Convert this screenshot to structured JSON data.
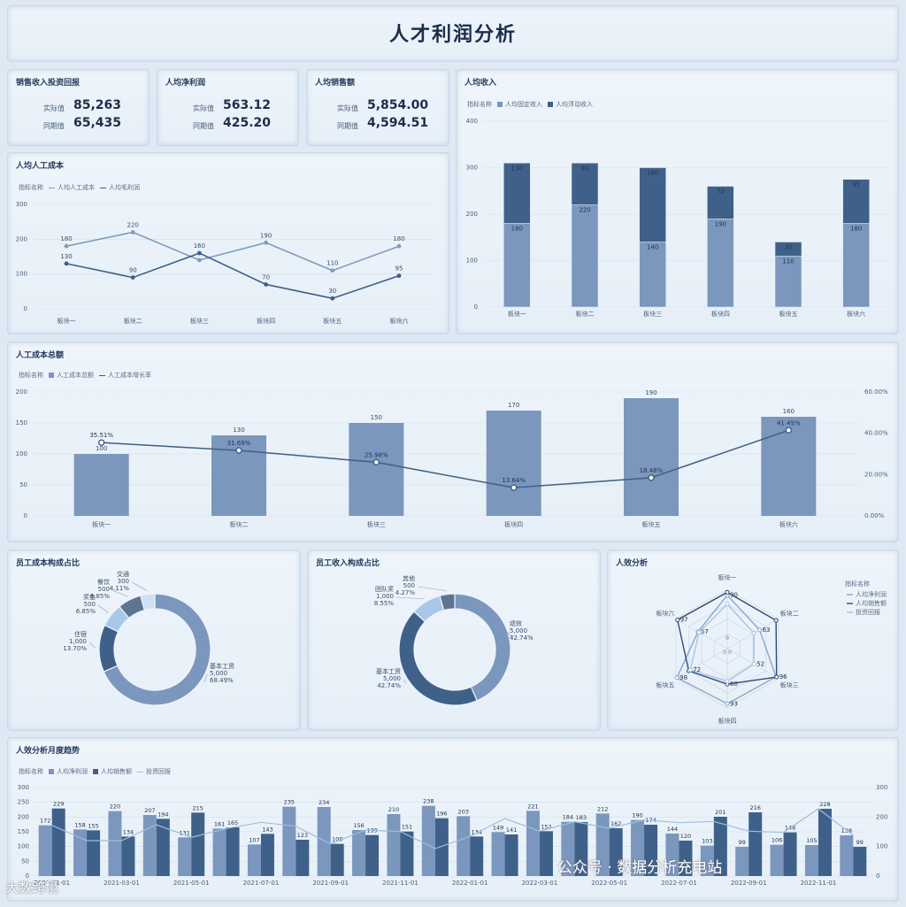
{
  "title": "人才利润分析",
  "legend_label": "指标名称",
  "kpis": [
    {
      "title": "销售收入投资回报",
      "actual_label": "实际值",
      "actual": "85,263",
      "compare_label": "同期值",
      "compare": "65,435"
    },
    {
      "title": "人均净利润",
      "actual_label": "实际值",
      "actual": "563.12",
      "compare_label": "同期值",
      "compare": "425.20"
    },
    {
      "title": "人均销售额",
      "actual_label": "实际值",
      "actual": "5,854.00",
      "compare_label": "同期值",
      "compare": "4,594.51"
    }
  ],
  "chart_data": [
    {
      "id": "labor_cost_per_capita",
      "type": "line",
      "title": "人均人工成本",
      "categories": [
        "板块一",
        "板块二",
        "板块三",
        "板块四",
        "板块五",
        "板块六"
      ],
      "series": [
        {
          "name": "人均人工成本",
          "values": [
            180,
            220,
            140,
            190,
            110,
            180
          ],
          "color": "#7f9cc0",
          "data_labels": [
            "180",
            "220",
            "",
            "190",
            "110",
            "180"
          ]
        },
        {
          "name": "人均毛利润",
          "values": [
            130,
            90,
            160,
            70,
            30,
            95
          ],
          "color": "#3e5f86",
          "data_labels": [
            "130",
            "90",
            "160",
            "70",
            "30",
            "95"
          ]
        }
      ],
      "ylim": [
        0,
        300
      ],
      "yticks": [
        0,
        100,
        200,
        300
      ]
    },
    {
      "id": "income_per_capita",
      "type": "bar",
      "stacked": true,
      "title": "人均收入",
      "categories": [
        "板块一",
        "板块二",
        "板块三",
        "板块四",
        "板块五",
        "板块六"
      ],
      "series": [
        {
          "name": "人均固定收入",
          "values": [
            180,
            220,
            140,
            190,
            110,
            180
          ],
          "color": "#7b97bd"
        },
        {
          "name": "人均浮动收入",
          "values": [
            130,
            90,
            160,
            70,
            30,
            95
          ],
          "color": "#3f6189"
        }
      ],
      "ylim": [
        0,
        400
      ],
      "yticks": [
        0,
        100,
        200,
        300,
        400
      ]
    },
    {
      "id": "labor_cost_total",
      "type": "bar",
      "title": "人工成本总额",
      "categories": [
        "板块一",
        "板块二",
        "板块三",
        "板块四",
        "板块五",
        "板块六"
      ],
      "series": [
        {
          "name": "人工成本总额",
          "values": [
            100,
            130,
            150,
            170,
            190,
            160
          ],
          "color": "#7b97bd"
        },
        {
          "name": "人工成本增长率",
          "values": [
            35.51,
            31.69,
            25.98,
            13.64,
            18.48,
            41.45
          ],
          "labels": [
            "35.51%",
            "31.69%",
            "25.98%",
            "13.64%",
            "18.48%",
            "41.45%"
          ],
          "axis": "right",
          "color": "#3e5f86"
        }
      ],
      "ylim": [
        0,
        200
      ],
      "yticks": [
        0,
        50,
        100,
        150,
        200
      ],
      "y2lim": [
        0,
        60
      ],
      "y2ticks": [
        "0.00%",
        "20.00%",
        "40.00%",
        "60.00%"
      ]
    },
    {
      "id": "employee_cost_composition",
      "type": "pie",
      "donut": true,
      "title": "员工成本构成占比",
      "slices": [
        {
          "name": "基本工资",
          "value": 5000,
          "value_label": "5,000",
          "pct": "68.49%",
          "color": "#7b97bd"
        },
        {
          "name": "住宿",
          "value": 1000,
          "value_label": "1,000",
          "pct": "13.70%",
          "color": "#3f6189"
        },
        {
          "name": "奖金",
          "value": 500,
          "value_label": "500",
          "pct": "6.85%",
          "color": "#a9c8e8"
        },
        {
          "name": "餐饮",
          "value": 500,
          "value_label": "500",
          "pct": "6.85%",
          "color": "#5e7592"
        },
        {
          "name": "交通",
          "value": 300,
          "value_label": "300",
          "pct": "4.11%",
          "color": "#cfe0f1"
        }
      ]
    },
    {
      "id": "employee_income_composition",
      "type": "pie",
      "donut": true,
      "title": "员工收入构成占比",
      "slices": [
        {
          "name": "绩效",
          "value": 5000,
          "value_label": "5,000",
          "pct": "42.74%",
          "color": "#7b97bd"
        },
        {
          "name": "基本工资",
          "value": 5000,
          "value_label": "5,000",
          "pct": "42.74%",
          "color": "#3f6189"
        },
        {
          "name": "团队奖",
          "value": 1000,
          "value_label": "1,000",
          "pct": "8.55%",
          "color": "#a9c8e8"
        },
        {
          "name": "其他",
          "value": 500,
          "value_label": "500",
          "pct": "4.27%",
          "color": "#5e7592"
        }
      ]
    },
    {
      "id": "efficiency_radar",
      "type": "radar",
      "title": "人效分析",
      "axes": [
        "板块一",
        "板块二",
        "板块三",
        "板块四",
        "板块五",
        "板块六"
      ],
      "series": [
        {
          "name": "人均净利润",
          "values": [
            90,
            63,
            95,
            93,
            98,
            57
          ],
          "labels": [
            "90",
            "63",
            "",
            "93",
            "98",
            "57"
          ],
          "color": "#8aa6c8"
        },
        {
          "name": "人均销售额",
          "values": [
            95,
            95,
            96,
            60,
            75,
            97
          ],
          "labels": [
            "",
            "",
            "96",
            "60",
            "",
            "97"
          ],
          "color": "#2e4c72"
        },
        {
          "name": "投资回报",
          "values": [
            75,
            52,
            52,
            55,
            72,
            55
          ],
          "labels": [
            "",
            "",
            "52",
            "",
            "72",
            ""
          ],
          "color": "#a7c4e4"
        }
      ],
      "extra_labels": [
        "0",
        "0",
        "0"
      ],
      "range": [
        0,
        100
      ]
    },
    {
      "id": "monthly_trend",
      "type": "bar",
      "title": "人效分析月度趋势",
      "categories": [
        "2021-01",
        "2021-02",
        "2021-03",
        "2021-04",
        "2021-05",
        "2021-06",
        "2021-07",
        "2021-08",
        "2021-09",
        "2021-10",
        "2021-11",
        "2021-12",
        "2022-01",
        "2022-02",
        "2022-03",
        "2022-04",
        "2022-05",
        "2022-06",
        "2022-07",
        "2022-08",
        "2022-09",
        "2022-10",
        "2022-11",
        "2022-12"
      ],
      "xtick_labels": [
        "2021-01-01",
        "2021-03-01",
        "2021-05-01",
        "2021-07-01",
        "2021-09-01",
        "2021-11-01",
        "2022-01-01",
        "2022-03-01",
        "2022-05-01",
        "2022-07-01",
        "2022-09-01",
        "2022-11-01"
      ],
      "series": [
        {
          "name": "人均净利润",
          "values": [
            172,
            158,
            220,
            207,
            131,
            161,
            107,
            235,
            234,
            156,
            210,
            238,
            203,
            149,
            221,
            184,
            212,
            190,
            144,
            103,
            99,
            106,
            105,
            138
          ],
          "color": "#7b97bd"
        },
        {
          "name": "人均销售额",
          "values": [
            229,
            155,
            134,
            194,
            215,
            165,
            143,
            123,
            109,
            139,
            151,
            196,
            134,
            141,
            152,
            183,
            162,
            174,
            120,
            201,
            216,
            148,
            228,
            99
          ],
          "color": "#3f6189"
        },
        {
          "name": "投资回报",
          "values": [
            172,
            120,
            120,
            174,
            131,
            161,
            182,
            169,
            109,
            156,
            151,
            93,
            134,
            195,
            152,
            184,
            162,
            190,
            181,
            185,
            152,
            148,
            228,
            138
          ],
          "color": "#9fbde0"
        }
      ],
      "ylim": [
        0,
        300
      ],
      "yticks": [
        0,
        50,
        100,
        150,
        200,
        250,
        300
      ],
      "y2ticks": [
        0,
        100,
        200,
        300
      ]
    }
  ],
  "watermark": "公众号 · 数据分析充电站",
  "watermark2": "大数跨境"
}
